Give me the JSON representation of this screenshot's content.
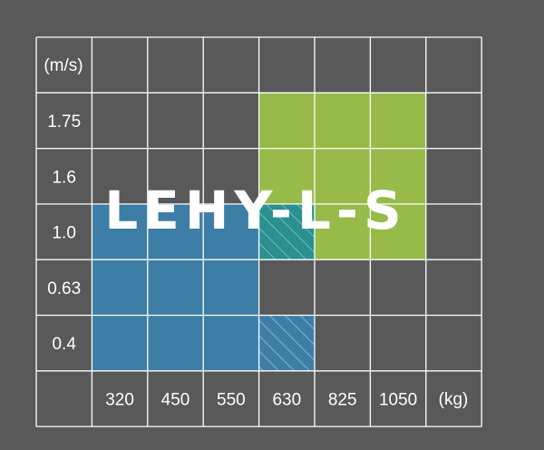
{
  "chart_data": {
    "type": "heatmap",
    "title": "LEHY-L-S",
    "xlabel": "(kg)",
    "ylabel": "(m/s)",
    "x_categories": [
      "320",
      "450",
      "550",
      "630",
      "825",
      "1050"
    ],
    "y_categories": [
      "1.75",
      "1.6",
      "1.0",
      "0.63",
      "0.4"
    ],
    "grid": true,
    "regions": [
      {
        "name": "blue",
        "color": "#3d7ea6",
        "cells": [
          [
            "320",
            "1.0"
          ],
          [
            "450",
            "1.0"
          ],
          [
            "550",
            "1.0"
          ],
          [
            "320",
            "0.63"
          ],
          [
            "450",
            "0.63"
          ],
          [
            "550",
            "0.63"
          ],
          [
            "320",
            "0.4"
          ],
          [
            "450",
            "0.4"
          ],
          [
            "550",
            "0.4"
          ]
        ]
      },
      {
        "name": "green",
        "color": "#96bb48",
        "cells": [
          [
            "630",
            "1.75"
          ],
          [
            "825",
            "1.75"
          ],
          [
            "1050",
            "1.75"
          ],
          [
            "630",
            "1.6"
          ],
          [
            "825",
            "1.6"
          ],
          [
            "1050",
            "1.6"
          ],
          [
            "825",
            "1.0"
          ],
          [
            "1050",
            "1.0"
          ]
        ]
      },
      {
        "name": "overlap",
        "color": "#2a9090",
        "hatched": true,
        "cells": [
          [
            "630",
            "1.0"
          ]
        ]
      },
      {
        "name": "hatched-blue",
        "color": "#3d7ea6",
        "hatched": true,
        "cells": [
          [
            "630",
            "0.4"
          ]
        ]
      }
    ]
  },
  "colors": {
    "background": "#5a5959",
    "grid": "#ffffff",
    "text": "#ffffff"
  }
}
